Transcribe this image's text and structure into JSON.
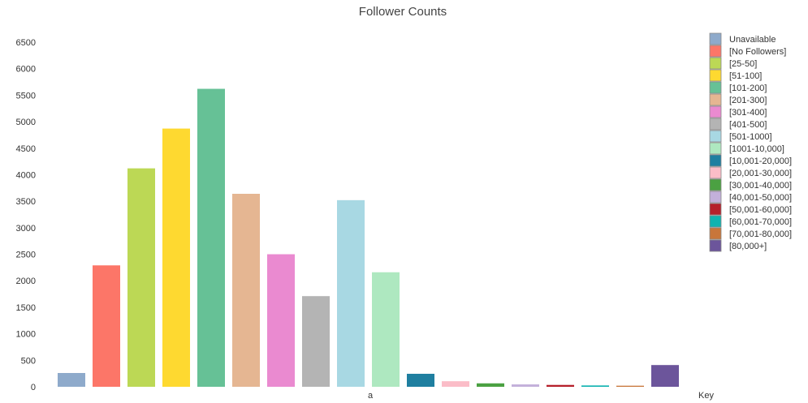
{
  "chart_data": {
    "type": "bar",
    "title": "Follower Counts",
    "xlabel": "a",
    "legend_title": "Key",
    "legend_position": "right",
    "ylim": [
      0,
      6500
    ],
    "yticks": [
      0,
      500,
      1000,
      1500,
      2000,
      2500,
      3000,
      3500,
      4000,
      4500,
      5000,
      5500,
      6000,
      6500
    ],
    "grid": false,
    "categories": [
      "Unavailable",
      "[No Followers]",
      "[25-50]",
      "[51-100]",
      "[101-200]",
      "[201-300]",
      "[301-400]",
      "[401-500]",
      "[501-1000]",
      "[1001-10,000]",
      "[10,001-20,000]",
      "[20,001-30,000]",
      "[30,001-40,000]",
      "[40,001-50,000]",
      "[50,001-60,000]",
      "[60,001-70,000]",
      "[70,001-80,000]",
      "[80,000+]"
    ],
    "values": [
      260,
      2290,
      4120,
      4870,
      5620,
      3640,
      2500,
      1710,
      3520,
      2160,
      245,
      105,
      65,
      45,
      35,
      25,
      20,
      410
    ],
    "colors": [
      "#8eaacb",
      "#fc7668",
      "#bcd855",
      "#fed930",
      "#66c196",
      "#e5b692",
      "#ea8ad0",
      "#b4b4b4",
      "#a8d8e3",
      "#aee8c0",
      "#1f7fa0",
      "#fbbdc8",
      "#4ba142",
      "#c3b0da",
      "#b5202b",
      "#0fb3b0",
      "#c8763a",
      "#6c559b"
    ]
  }
}
